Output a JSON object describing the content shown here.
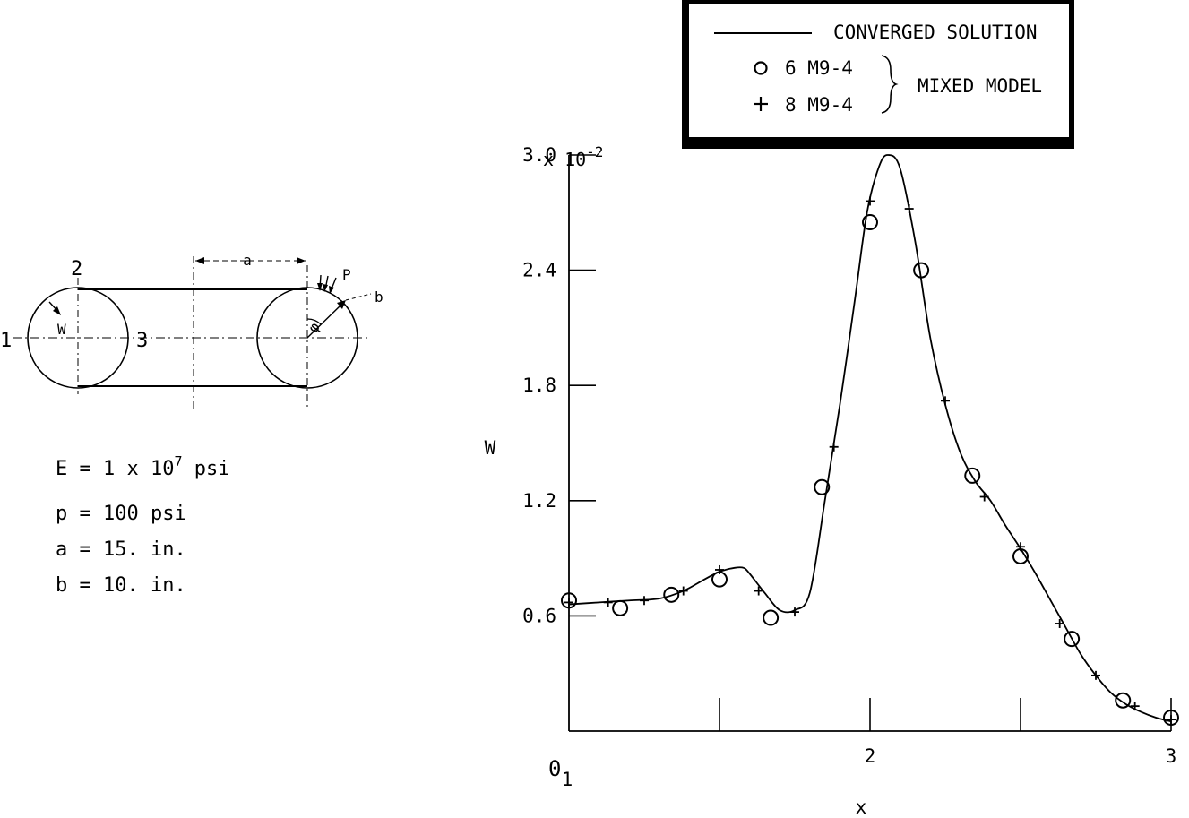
{
  "diagram": {
    "section_labels": {
      "p1": "1",
      "p2": "2",
      "p3": "3",
      "w": "W",
      "a": "a",
      "b": "b",
      "p": "P",
      "phi": "φ"
    },
    "properties": [
      {
        "lhs": "E",
        "value": "1 x 10",
        "sup": "7",
        "unit": " psi"
      },
      {
        "lhs": "p",
        "value": "100 psi",
        "sup": "",
        "unit": ""
      },
      {
        "lhs": "a",
        "value": "15. in.",
        "sup": "",
        "unit": ""
      },
      {
        "lhs": "b",
        "value": "10. in.",
        "sup": "",
        "unit": ""
      }
    ]
  },
  "legend": {
    "line_label": "CONVERGED SOLUTION",
    "circle_label": "6  M9-4",
    "plus_label": "8  M9-4",
    "group_label": "MIXED MODEL"
  },
  "chart_data": {
    "type": "line",
    "xlabel": "x",
    "ylabel": "W",
    "y_multiplier": "x 10",
    "y_multiplier_exp": "-2",
    "xlim": [
      1,
      3
    ],
    "ylim": [
      0,
      3.0
    ],
    "x_ticks": [
      1,
      1.5,
      2,
      2.5,
      3
    ],
    "x_tick_labels": [
      {
        "x": 1,
        "label": "1"
      },
      {
        "x": 2,
        "label": "2"
      },
      {
        "x": 3,
        "label": "3"
      }
    ],
    "y_ticks": [
      0.6,
      1.2,
      1.8,
      2.4,
      3.0
    ],
    "y_tick_labels": [
      "0.6",
      "1.2",
      "1.8",
      "2.4",
      "3.0"
    ],
    "origin_label": "0",
    "series": [
      {
        "name": "CONVERGED SOLUTION",
        "marker": "line",
        "x": [
          1.0,
          1.1,
          1.2,
          1.3,
          1.38,
          1.45,
          1.5,
          1.55,
          1.58,
          1.6,
          1.65,
          1.7,
          1.75,
          1.8,
          1.85,
          1.9,
          1.95,
          1.99,
          2.03,
          2.06,
          2.1,
          2.15,
          2.2,
          2.25,
          2.3,
          2.35,
          2.4,
          2.45,
          2.5,
          2.55,
          2.6,
          2.65,
          2.7,
          2.75,
          2.8,
          2.85,
          2.9,
          2.95,
          3.0
        ],
        "y": [
          0.66,
          0.67,
          0.68,
          0.69,
          0.73,
          0.79,
          0.83,
          0.85,
          0.85,
          0.82,
          0.72,
          0.63,
          0.63,
          0.72,
          1.2,
          1.7,
          2.25,
          2.7,
          2.94,
          3.0,
          2.93,
          2.55,
          2.05,
          1.7,
          1.45,
          1.3,
          1.2,
          1.07,
          0.95,
          0.82,
          0.68,
          0.54,
          0.4,
          0.29,
          0.2,
          0.14,
          0.1,
          0.07,
          0.05
        ]
      },
      {
        "name": "6  M9-4",
        "marker": "circle",
        "x": [
          1.0,
          1.17,
          1.34,
          1.5,
          1.67,
          1.84,
          2.0,
          2.17,
          2.34,
          2.5,
          2.67,
          2.84,
          3.0
        ],
        "y": [
          0.68,
          0.64,
          0.71,
          0.79,
          0.59,
          1.27,
          2.65,
          2.4,
          1.33,
          0.91,
          0.48,
          0.16,
          0.07
        ]
      },
      {
        "name": "8  M9-4",
        "marker": "plus",
        "x": [
          1.0,
          1.13,
          1.25,
          1.38,
          1.5,
          1.63,
          1.75,
          1.88,
          2.0,
          2.13,
          2.25,
          2.38,
          2.5,
          2.63,
          2.75,
          2.88,
          3.0
        ],
        "y": [
          0.67,
          0.67,
          0.68,
          0.73,
          0.84,
          0.73,
          0.62,
          1.48,
          2.76,
          2.72,
          1.72,
          1.22,
          0.96,
          0.56,
          0.29,
          0.13,
          0.06
        ]
      }
    ]
  }
}
